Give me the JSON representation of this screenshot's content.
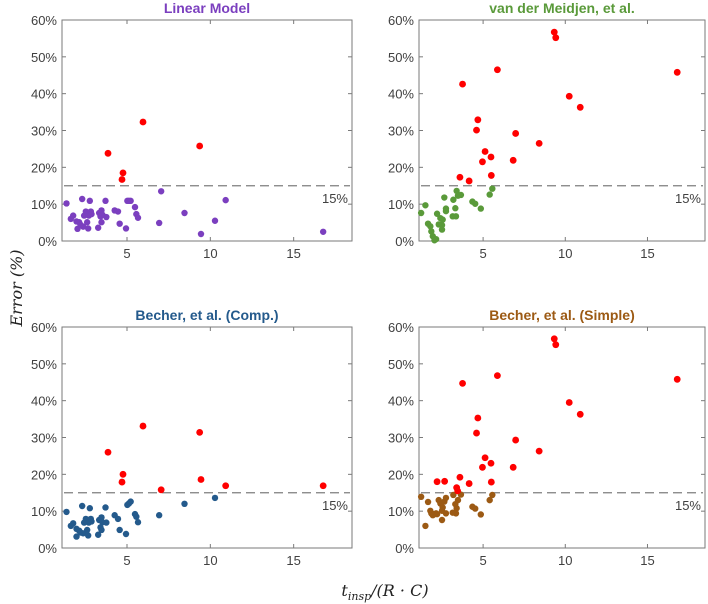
{
  "chart_data": {
    "type": "scatter",
    "ylabel": "Error (%)",
    "xlabel": "t_insp/(R · C)",
    "xlabel_main": "t",
    "xlabel_sub": "insp",
    "xlabel_rest": "/(R · C)",
    "xlim": [
      1.1,
      18.5
    ],
    "ylim": [
      0,
      60
    ],
    "xticks": [
      5,
      10,
      15
    ],
    "yticks": [
      0,
      10,
      20,
      30,
      40,
      50,
      60
    ],
    "ytick_labels": [
      "0%",
      "10%",
      "20%",
      "30%",
      "40%",
      "50%",
      "60%"
    ],
    "threshold": 15,
    "threshold_label": "15%",
    "exceed_color": "#ff0000",
    "threshold_color": "#7f7f7f",
    "panels": [
      {
        "title": "Linear Model",
        "color": "#7b3fbf",
        "within": [
          [
            1.37,
            10.2
          ],
          [
            1.63,
            6.0
          ],
          [
            1.77,
            6.9
          ],
          [
            1.97,
            5.3
          ],
          [
            2.03,
            3.3
          ],
          [
            2.13,
            5.1
          ],
          [
            2.21,
            4.4
          ],
          [
            2.31,
            11.4
          ],
          [
            2.37,
            3.9
          ],
          [
            2.43,
            6.9
          ],
          [
            2.53,
            8.0
          ],
          [
            2.61,
            5.1
          ],
          [
            2.67,
            3.4
          ],
          [
            2.71,
            6.9
          ],
          [
            2.77,
            10.9
          ],
          [
            2.83,
            8.0
          ],
          [
            2.87,
            7.3
          ],
          [
            3.27,
            3.6
          ],
          [
            3.33,
            7.6
          ],
          [
            3.41,
            6.7
          ],
          [
            3.47,
            8.3
          ],
          [
            3.47,
            5.1
          ],
          [
            3.53,
            7.1
          ],
          [
            3.71,
            10.9
          ],
          [
            3.76,
            6.5
          ],
          [
            4.26,
            8.3
          ],
          [
            4.46,
            8.0
          ],
          [
            4.56,
            4.7
          ],
          [
            4.94,
            3.4
          ],
          [
            5.02,
            10.9
          ],
          [
            5.12,
            10.9
          ],
          [
            5.22,
            10.9
          ],
          [
            5.48,
            9.2
          ],
          [
            5.56,
            7.3
          ],
          [
            5.66,
            6.3
          ],
          [
            6.93,
            4.9
          ],
          [
            7.05,
            13.5
          ],
          [
            8.45,
            7.6
          ],
          [
            9.44,
            1.9
          ],
          [
            10.28,
            5.5
          ],
          [
            10.92,
            11.1
          ],
          [
            16.77,
            2.5
          ]
        ],
        "exceed": [
          [
            3.86,
            23.8
          ],
          [
            4.76,
            18.5
          ],
          [
            4.7,
            16.7
          ],
          [
            5.96,
            32.3
          ],
          [
            9.36,
            25.8
          ]
        ]
      },
      {
        "title": "van der Meidjen, et al.",
        "color": "#5a9a3a",
        "within": [
          [
            1.23,
            7.6
          ],
          [
            1.49,
            9.7
          ],
          [
            1.65,
            4.7
          ],
          [
            1.79,
            4.0
          ],
          [
            1.85,
            2.6
          ],
          [
            1.94,
            1.3
          ],
          [
            2.04,
            0.2
          ],
          [
            2.14,
            0.5
          ],
          [
            2.2,
            7.4
          ],
          [
            2.3,
            4.5
          ],
          [
            2.4,
            6.2
          ],
          [
            2.5,
            4.3
          ],
          [
            2.5,
            3.1
          ],
          [
            2.54,
            5.8
          ],
          [
            2.64,
            11.8
          ],
          [
            2.74,
            8.8
          ],
          [
            2.74,
            8.1
          ],
          [
            3.15,
            6.7
          ],
          [
            3.19,
            11.2
          ],
          [
            3.31,
            8.9
          ],
          [
            3.35,
            6.7
          ],
          [
            3.39,
            13.6
          ],
          [
            3.47,
            12.3
          ],
          [
            3.65,
            12.5
          ],
          [
            4.35,
            10.7
          ],
          [
            4.52,
            10.1
          ],
          [
            4.86,
            8.8
          ],
          [
            5.4,
            12.6
          ],
          [
            5.56,
            14.2
          ]
        ],
        "exceed": [
          [
            3.59,
            17.3
          ],
          [
            3.75,
            42.6
          ],
          [
            4.15,
            16.3
          ],
          [
            4.6,
            30.1
          ],
          [
            4.68,
            32.9
          ],
          [
            4.96,
            21.5
          ],
          [
            5.12,
            24.3
          ],
          [
            5.48,
            22.8
          ],
          [
            5.5,
            17.8
          ],
          [
            5.87,
            46.5
          ],
          [
            6.83,
            21.9
          ],
          [
            6.98,
            29.2
          ],
          [
            8.41,
            26.5
          ],
          [
            9.33,
            56.7
          ],
          [
            9.42,
            55.2
          ],
          [
            10.24,
            39.3
          ],
          [
            10.91,
            36.3
          ],
          [
            16.81,
            45.8
          ]
        ]
      },
      {
        "title": "Becher, et al. (Comp.)",
        "color": "#245a8c",
        "within": [
          [
            1.37,
            9.8
          ],
          [
            1.63,
            6.0
          ],
          [
            1.77,
            6.7
          ],
          [
            1.97,
            5.2
          ],
          [
            1.97,
            3.1
          ],
          [
            2.13,
            4.7
          ],
          [
            2.21,
            4.2
          ],
          [
            2.31,
            11.4
          ],
          [
            2.37,
            4.0
          ],
          [
            2.43,
            6.9
          ],
          [
            2.53,
            7.9
          ],
          [
            2.61,
            4.9
          ],
          [
            2.67,
            3.4
          ],
          [
            2.71,
            6.9
          ],
          [
            2.77,
            10.8
          ],
          [
            2.83,
            7.9
          ],
          [
            2.87,
            7.2
          ],
          [
            3.27,
            3.6
          ],
          [
            3.33,
            7.6
          ],
          [
            3.41,
            5.6
          ],
          [
            3.47,
            8.3
          ],
          [
            3.47,
            4.9
          ],
          [
            3.53,
            7.0
          ],
          [
            3.71,
            11.0
          ],
          [
            3.76,
            6.9
          ],
          [
            4.26,
            8.9
          ],
          [
            4.46,
            7.9
          ],
          [
            4.56,
            4.9
          ],
          [
            4.94,
            3.8
          ],
          [
            5.02,
            11.7
          ],
          [
            5.12,
            12.1
          ],
          [
            5.22,
            12.6
          ],
          [
            5.48,
            9.2
          ],
          [
            5.56,
            8.5
          ],
          [
            5.66,
            7.0
          ],
          [
            6.93,
            8.9
          ],
          [
            8.45,
            12.0
          ],
          [
            10.28,
            13.6
          ]
        ],
        "exceed": [
          [
            3.86,
            26.0
          ],
          [
            4.76,
            20.0
          ],
          [
            4.7,
            17.9
          ],
          [
            5.96,
            33.1
          ],
          [
            7.05,
            15.8
          ],
          [
            9.36,
            31.4
          ],
          [
            9.44,
            18.6
          ],
          [
            10.92,
            16.9
          ],
          [
            16.77,
            16.9
          ]
        ]
      },
      {
        "title": "Becher, et al. (Simple)",
        "color": "#9c5a14",
        "within": [
          [
            1.23,
            13.9
          ],
          [
            1.49,
            6.0
          ],
          [
            1.65,
            12.5
          ],
          [
            1.79,
            10.1
          ],
          [
            1.85,
            9.4
          ],
          [
            1.94,
            8.9
          ],
          [
            2.04,
            9.2
          ],
          [
            2.14,
            9.4
          ],
          [
            2.2,
            9.2
          ],
          [
            2.3,
            13.0
          ],
          [
            2.4,
            12.1
          ],
          [
            2.5,
            7.6
          ],
          [
            2.5,
            10.1
          ],
          [
            2.54,
            11.0
          ],
          [
            2.64,
            12.6
          ],
          [
            2.74,
            13.6
          ],
          [
            2.74,
            9.4
          ],
          [
            3.15,
            9.6
          ],
          [
            3.19,
            14.4
          ],
          [
            3.31,
            11.9
          ],
          [
            3.35,
            9.4
          ],
          [
            3.39,
            10.8
          ],
          [
            3.47,
            13.0
          ],
          [
            3.65,
            14.5
          ],
          [
            4.35,
            11.2
          ],
          [
            4.52,
            10.7
          ],
          [
            4.86,
            9.1
          ],
          [
            5.4,
            13.0
          ],
          [
            5.56,
            14.4
          ]
        ],
        "exceed": [
          [
            2.2,
            18.0
          ],
          [
            2.66,
            18.1
          ],
          [
            3.39,
            16.4
          ],
          [
            3.45,
            15.5
          ],
          [
            3.59,
            19.2
          ],
          [
            3.75,
            44.7
          ],
          [
            4.15,
            17.5
          ],
          [
            4.6,
            31.2
          ],
          [
            4.68,
            35.3
          ],
          [
            4.96,
            21.9
          ],
          [
            5.12,
            24.5
          ],
          [
            5.48,
            23.0
          ],
          [
            5.5,
            17.9
          ],
          [
            5.87,
            46.8
          ],
          [
            6.83,
            21.9
          ],
          [
            6.98,
            29.3
          ],
          [
            8.41,
            26.3
          ],
          [
            9.33,
            56.8
          ],
          [
            9.42,
            55.2
          ],
          [
            10.24,
            39.5
          ],
          [
            10.91,
            36.3
          ],
          [
            16.81,
            45.8
          ]
        ]
      }
    ]
  }
}
